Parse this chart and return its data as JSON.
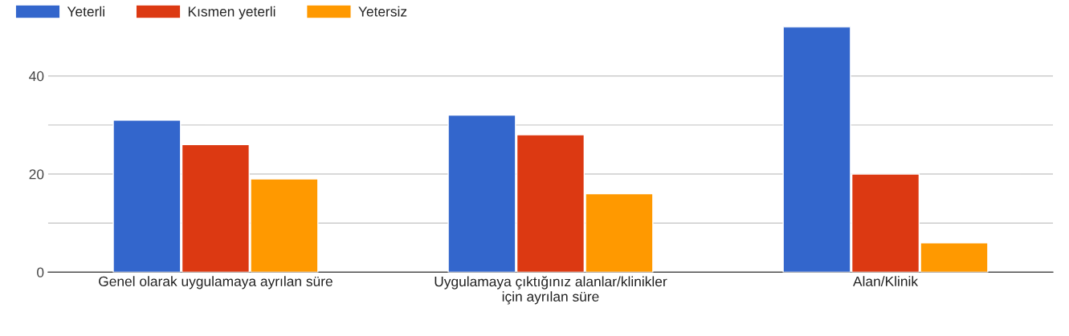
{
  "chart_data": {
    "type": "bar",
    "categories": [
      "Genel olarak uygulamaya ayrılan süre",
      "Uygulamaya çıktığınız alanlar/klinikler için ayrılan süre",
      "Alan/Klinik"
    ],
    "series": [
      {
        "name": "Yeterli",
        "color": "#3366cc",
        "values": [
          31,
          32,
          50
        ]
      },
      {
        "name": "Kısmen yeterli",
        "color": "#dc3912",
        "values": [
          26,
          28,
          20
        ]
      },
      {
        "name": "Yetersiz",
        "color": "#ff9900",
        "values": [
          19,
          16,
          6
        ]
      }
    ],
    "ylim": [
      0,
      50
    ],
    "yticks": [
      0,
      {
        "value": 10,
        "label": null
      },
      20,
      {
        "value": 30,
        "label": null
      },
      40
    ],
    "grid": "y",
    "legend": "top left"
  }
}
